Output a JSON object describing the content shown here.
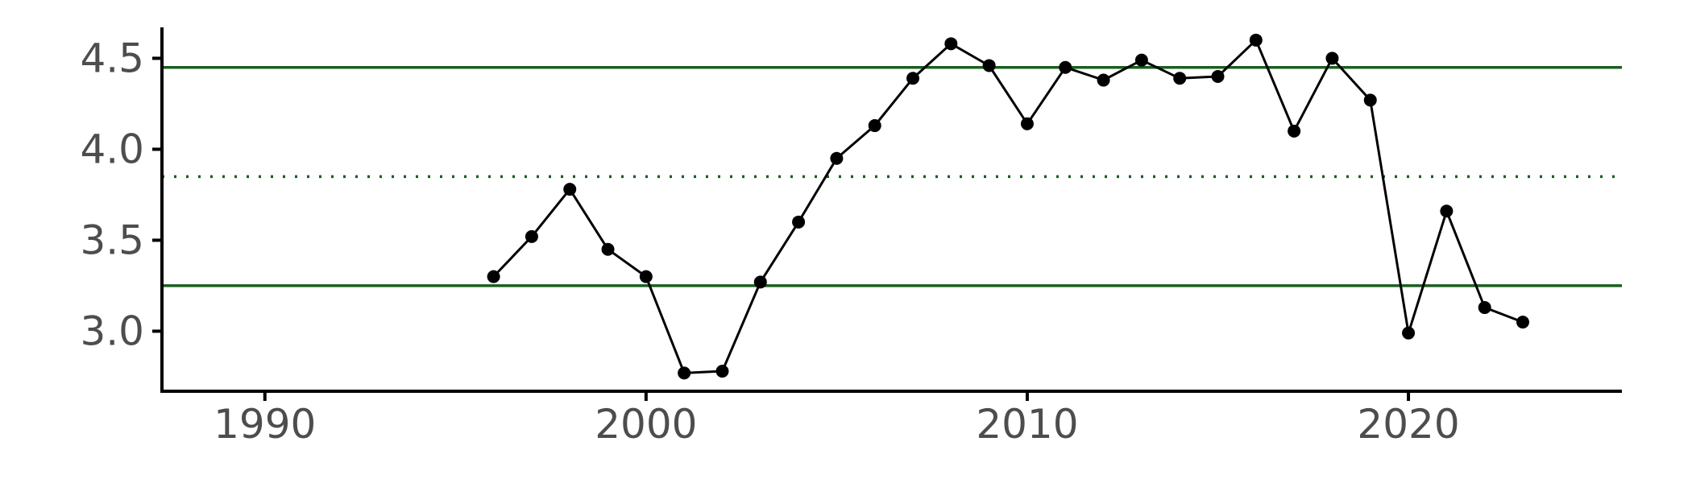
{
  "chart_data": {
    "type": "line",
    "title": "",
    "xlabel": "",
    "ylabel": "",
    "xlim": [
      1987.3,
      2025.6
    ],
    "ylim": [
      2.67,
      4.67
    ],
    "x_ticks": [
      1990,
      2000,
      2010,
      2020
    ],
    "x_tick_labels": [
      "1990",
      "2000",
      "2010",
      "2020"
    ],
    "y_ticks": [
      3.0,
      3.5,
      4.0,
      4.5
    ],
    "y_tick_labels": [
      "3.0",
      "3.5",
      "4.0",
      "4.5"
    ],
    "grid": false,
    "legend": "none",
    "reference_lines": [
      {
        "value": 4.45,
        "style": "solid",
        "color": "#1b5e20"
      },
      {
        "value": 3.85,
        "style": "dotted",
        "color": "#1b5e20"
      },
      {
        "value": 3.25,
        "style": "solid",
        "color": "#1b5e20"
      }
    ],
    "series": [
      {
        "color": "#000000",
        "x": [
          1996,
          1997,
          1998,
          1999,
          2000,
          2001,
          2002,
          2003,
          2004,
          2005,
          2006,
          2007,
          2008,
          2009,
          2010,
          2011,
          2012,
          2013,
          2014,
          2015,
          2016,
          2017,
          2018,
          2019,
          2020,
          2021,
          2022,
          2023
        ],
        "values": [
          3.3,
          3.52,
          3.78,
          3.45,
          3.3,
          2.77,
          2.78,
          3.27,
          3.6,
          3.95,
          4.13,
          4.39,
          4.58,
          4.46,
          4.14,
          4.45,
          4.38,
          4.49,
          4.39,
          4.4,
          4.6,
          4.1,
          4.5,
          4.27,
          2.99,
          3.66,
          3.13,
          3.05
        ]
      }
    ]
  }
}
